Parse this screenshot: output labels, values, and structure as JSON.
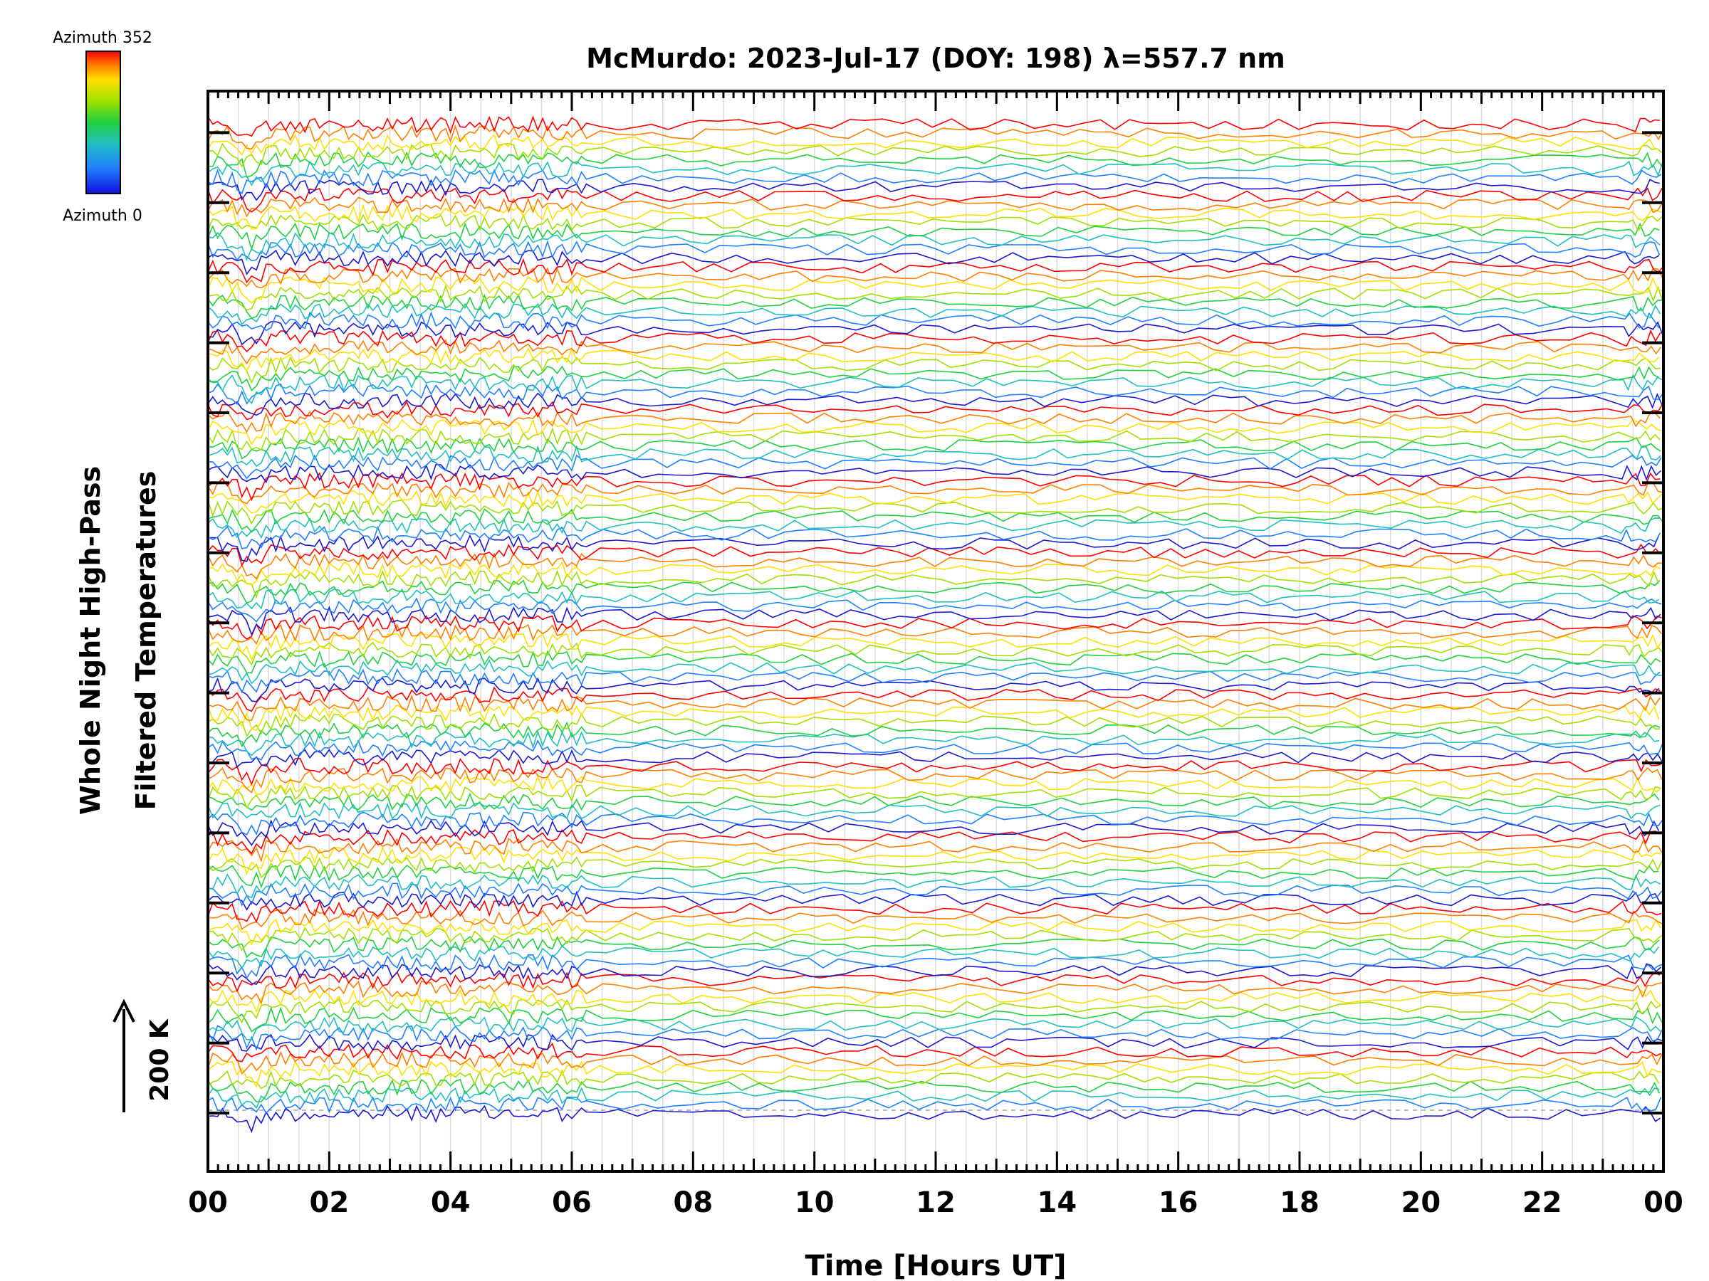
{
  "chart_data": {
    "type": "line",
    "title": "McMurdo: 2023-Jul-17 (DOY: 198) λ=557.7 nm",
    "xlabel": "Time [Hours UT]",
    "ylabel_line1": "Whole Night High-Pass",
    "ylabel_line2": "Filtered Temperatures",
    "scale_bar_label": "200 K",
    "x_range_hours": [
      0,
      24
    ],
    "x_tick_labels": [
      "00",
      "02",
      "04",
      "06",
      "08",
      "10",
      "12",
      "14",
      "16",
      "18",
      "20",
      "22",
      "00"
    ],
    "y_axis_labels": "none",
    "y_major_tick_count": 15,
    "vertical_gridlines_every_hours": 0.5,
    "grid": true,
    "colorbar": {
      "top_label": "Azimuth 352",
      "bottom_label": "Azimuth 0",
      "colors": [
        "#ff0000",
        "#ff8000",
        "#ffe000",
        "#a0e000",
        "#20d040",
        "#20c0c0",
        "#2080ff",
        "#1010e0"
      ]
    },
    "series_groups": 14,
    "traces_per_group": 8,
    "series_note": "stacked high-pass filtered temperature traces, each trace colored by azimuth (0 blue to 352 red)"
  }
}
